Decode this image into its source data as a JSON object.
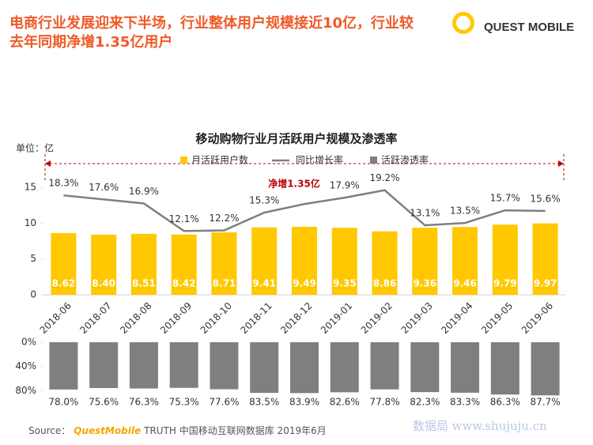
{
  "headline": [
    "电商行业发展迎来下半场，行业整体用户规模接近10亿，行业较",
    "去年同期净增1.35亿用户"
  ],
  "logo": "QUEST MOBILE",
  "footer": {
    "label": "Source：",
    "brand": "QuestMobile",
    "text": "TRUTH 中国移动互联网数据库 2019年6月"
  },
  "watermark": "数据局 www.shujuju.cn",
  "chart_data": [
    {
      "type": "bar",
      "title": "移动购物行业月活跃用户规模及渗透率",
      "y_unit": "单位：亿",
      "annotation": "净增1.35亿",
      "categories": [
        "2018-06",
        "2018-07",
        "2018-08",
        "2018-09",
        "2018-10",
        "2018-11",
        "2018-12",
        "2019-01",
        "2019-02",
        "2019-03",
        "2019-04",
        "2019-05",
        "2019-06"
      ],
      "series": [
        {
          "name": "月活跃用户数",
          "color": "#ffc800",
          "values": [
            8.62,
            8.4,
            8.51,
            8.42,
            8.71,
            9.41,
            9.49,
            9.35,
            8.86,
            9.36,
            9.46,
            9.79,
            9.97
          ],
          "value_labels": [
            "8.62",
            "8.40",
            "8.51",
            "8.42",
            "8.71",
            "9.41",
            "9.49",
            "9.35",
            "8.86",
            "9.36",
            "9.46",
            "9.79",
            "9.97"
          ]
        },
        {
          "name": "同比增长率",
          "type": "line",
          "axis": "y2",
          "color": "#7f7f7f",
          "values": [
            18.3,
            17.6,
            16.9,
            12.1,
            12.2,
            15.3,
            16.8,
            17.9,
            19.2,
            13.1,
            13.5,
            15.7,
            15.6
          ],
          "value_labels": [
            "18.3%",
            "17.6%",
            "16.9%",
            "12.1%",
            "12.2%",
            "15.3%",
            null,
            "17.9%",
            "19.2%",
            "13.1%",
            "13.5%",
            "15.7%",
            "15.6%"
          ]
        }
      ],
      "ylim": [
        0,
        15
      ],
      "yticks": [
        0,
        5,
        10,
        15
      ],
      "y2lim": [
        1,
        19.7
      ],
      "grid": false
    },
    {
      "type": "bar",
      "y_reversed": true,
      "series": [
        {
          "name": "活跃渗透率",
          "color": "#7f7f7f",
          "values": [
            78.0,
            75.6,
            76.3,
            75.3,
            77.6,
            83.5,
            83.9,
            82.6,
            77.8,
            82.3,
            83.3,
            86.3,
            87.7
          ],
          "value_labels": [
            "78.0%",
            "75.6%",
            "76.3%",
            "75.3%",
            "77.6%",
            "83.5%",
            "83.9%",
            "82.6%",
            "77.8%",
            "82.3%",
            "83.3%",
            "86.3%",
            "87.7%"
          ]
        }
      ],
      "ylim": [
        0,
        90
      ],
      "yticks": [
        {
          "value": 0,
          "label": "0%"
        },
        {
          "value": 40,
          "label": "40%"
        },
        {
          "value": 80,
          "label": "80%"
        }
      ],
      "grid": false
    }
  ]
}
